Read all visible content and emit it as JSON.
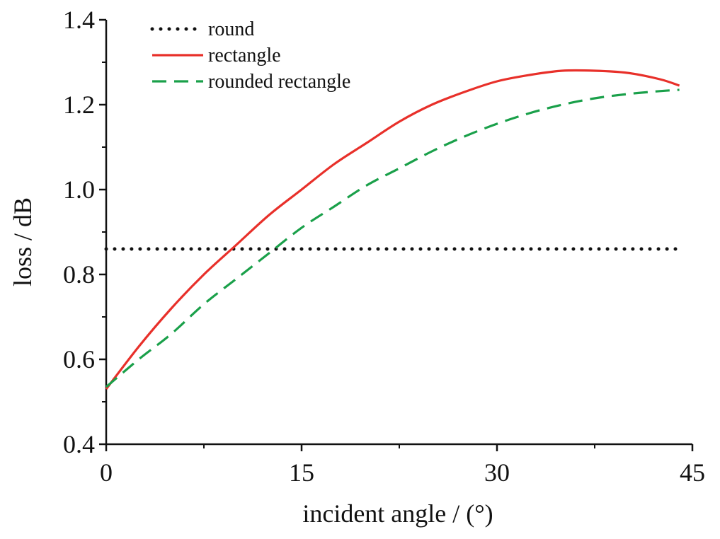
{
  "chart_data": {
    "type": "line",
    "title": "",
    "xlabel": "incident angle / (°)",
    "ylabel": "loss / dB",
    "xlim": [
      0,
      45
    ],
    "ylim": [
      0.4,
      1.4
    ],
    "x_ticks": [
      0,
      15,
      30,
      45
    ],
    "x_tick_labels": [
      "0",
      "15",
      "30",
      "45"
    ],
    "y_ticks": [
      0.4,
      0.6,
      0.8,
      1.0,
      1.2,
      1.4
    ],
    "y_tick_labels": [
      "0.4",
      "0.6",
      "0.8",
      "1.0",
      "1.2",
      "1.4"
    ],
    "grid": false,
    "legend_position": "top-left",
    "series": [
      {
        "name": "round",
        "style": "dotted",
        "color": "#111111",
        "x": [
          0,
          5,
          10,
          15,
          20,
          25,
          30,
          35,
          40,
          44
        ],
        "y": [
          0.86,
          0.86,
          0.86,
          0.86,
          0.86,
          0.86,
          0.86,
          0.86,
          0.86,
          0.86
        ]
      },
      {
        "name": "rectangle",
        "style": "solid",
        "color": "#e8302a",
        "x": [
          0,
          2.5,
          5,
          7.5,
          10,
          12.5,
          15,
          17.5,
          20,
          22.5,
          25,
          27.5,
          30,
          32.5,
          35,
          37.5,
          40,
          42.5,
          44
        ],
        "y": [
          0.53,
          0.63,
          0.72,
          0.8,
          0.87,
          0.94,
          1.0,
          1.06,
          1.11,
          1.16,
          1.2,
          1.23,
          1.255,
          1.27,
          1.28,
          1.28,
          1.275,
          1.26,
          1.245
        ]
      },
      {
        "name": "rounded rectangle",
        "style": "dashed",
        "color": "#1aa04a",
        "x": [
          0,
          2.5,
          5,
          7.5,
          10,
          12.5,
          15,
          17.5,
          20,
          22.5,
          25,
          27.5,
          30,
          32.5,
          35,
          37.5,
          40,
          42.5,
          44
        ],
        "y": [
          0.535,
          0.6,
          0.66,
          0.73,
          0.79,
          0.85,
          0.91,
          0.96,
          1.01,
          1.05,
          1.09,
          1.125,
          1.155,
          1.18,
          1.2,
          1.215,
          1.225,
          1.232,
          1.235
        ]
      }
    ]
  }
}
